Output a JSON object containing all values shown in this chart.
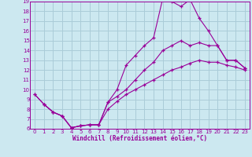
{
  "xlabel": "Windchill (Refroidissement éolien,°C)",
  "bg_color": "#cce8f0",
  "line_color": "#990099",
  "grid_color": "#aaccd8",
  "xlim": [
    -0.5,
    23.5
  ],
  "ylim": [
    6,
    19
  ],
  "xticks": [
    0,
    1,
    2,
    3,
    4,
    5,
    6,
    7,
    8,
    9,
    10,
    11,
    12,
    13,
    14,
    15,
    16,
    17,
    18,
    19,
    20,
    21,
    22,
    23
  ],
  "yticks": [
    6,
    7,
    8,
    9,
    10,
    11,
    12,
    13,
    14,
    15,
    16,
    17,
    18,
    19
  ],
  "line1_x": [
    0,
    1,
    2,
    3,
    4,
    5,
    6,
    7,
    8,
    9,
    10,
    11,
    12,
    13,
    14,
    15,
    16,
    17,
    18,
    19,
    20,
    21,
    22,
    23
  ],
  "line1_y": [
    9.5,
    8.5,
    7.7,
    7.3,
    6.1,
    6.3,
    6.4,
    6.4,
    8.7,
    10.0,
    12.5,
    13.5,
    14.5,
    15.3,
    19.3,
    19.0,
    18.5,
    19.2,
    17.3,
    16.0,
    14.5,
    13.0,
    13.0,
    12.2
  ],
  "line2_x": [
    1,
    2,
    3,
    4,
    5,
    6,
    7,
    8,
    9,
    10,
    11,
    12,
    13,
    14,
    15,
    16,
    17,
    18,
    19,
    20,
    21,
    22,
    23
  ],
  "line2_y": [
    8.5,
    7.7,
    7.3,
    6.1,
    6.3,
    6.4,
    6.4,
    8.7,
    9.3,
    10.0,
    11.0,
    12.0,
    12.8,
    14.0,
    14.5,
    15.0,
    14.5,
    14.8,
    14.5,
    14.5,
    13.0,
    13.0,
    12.2
  ],
  "line3_x": [
    0,
    1,
    2,
    3,
    4,
    5,
    6,
    7,
    8,
    9,
    10,
    11,
    12,
    13,
    14,
    15,
    16,
    17,
    18,
    19,
    20,
    21,
    22,
    23
  ],
  "line3_y": [
    9.5,
    8.5,
    7.7,
    7.3,
    6.1,
    6.3,
    6.4,
    6.4,
    8.0,
    8.8,
    9.5,
    10.0,
    10.5,
    11.0,
    11.5,
    12.0,
    12.3,
    12.7,
    13.0,
    12.8,
    12.8,
    12.5,
    12.3,
    12.0
  ]
}
